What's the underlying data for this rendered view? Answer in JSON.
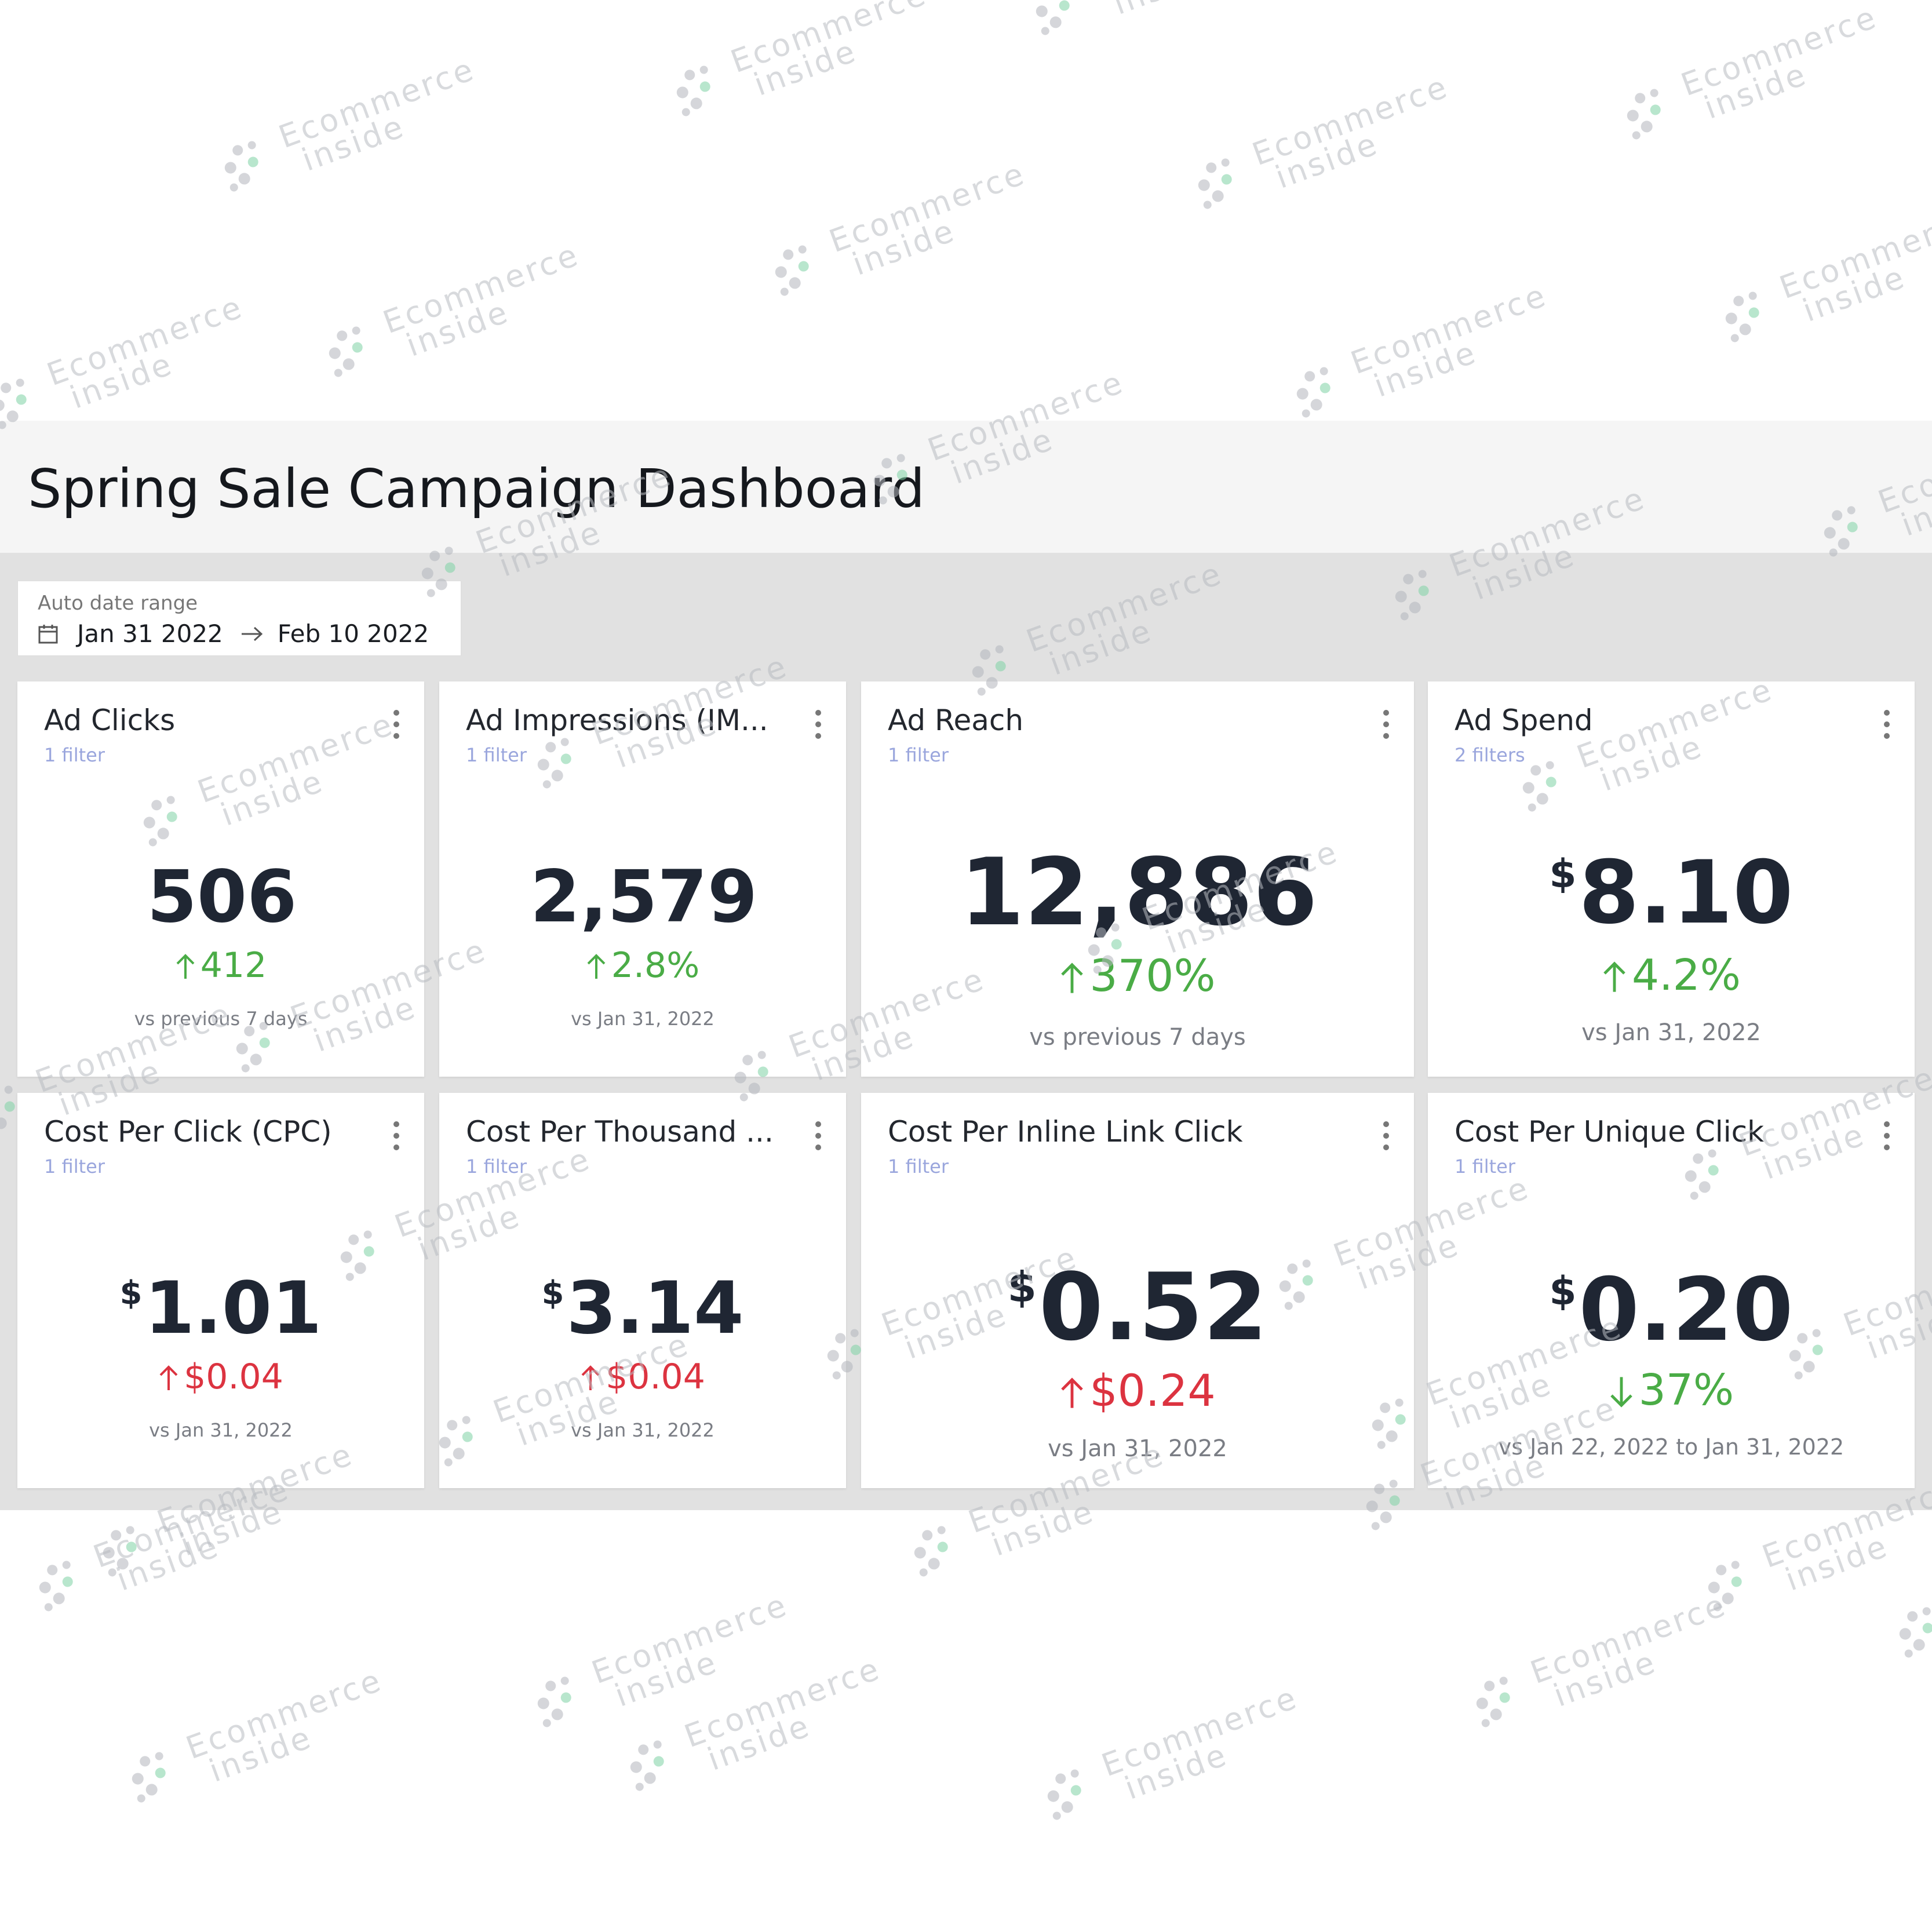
{
  "dashboard": {
    "title": "Spring Sale Campaign Dashboard"
  },
  "date_range": {
    "label": "Auto date range",
    "start": "Jan 31 2022",
    "end": "Feb 10 2022",
    "icon": "calendar-icon"
  },
  "watermark": {
    "line1": "Ecommerce",
    "line2": "inside"
  },
  "colors": {
    "positive": "#4aac46",
    "negative": "#dc3340",
    "filter_link": "#9aa6dd",
    "value": "#1f2633"
  },
  "cards": [
    {
      "title": "Ad Clicks",
      "filter": "1 filter",
      "currency": "",
      "value": "506",
      "change": "412",
      "direction": "up",
      "tone": "positive",
      "compare": "vs previous 7 days"
    },
    {
      "title": "Ad Impressions (IM...",
      "filter": "1 filter",
      "currency": "",
      "value": "2,579",
      "change": "2.8%",
      "direction": "up",
      "tone": "positive",
      "compare": "vs Jan 31, 2022"
    },
    {
      "title": "Ad Reach",
      "filter": "1 filter",
      "currency": "",
      "value": "12,886",
      "change": "370%",
      "direction": "up",
      "tone": "positive",
      "compare": "vs previous 7 days"
    },
    {
      "title": "Ad Spend",
      "filter": "2 filters",
      "currency": "$",
      "value": "8.10",
      "change": "4.2%",
      "direction": "up",
      "tone": "positive",
      "compare": "vs Jan 31, 2022"
    },
    {
      "title": "Cost Per Click (CPC)",
      "filter": "1 filter",
      "currency": "$",
      "value": "1.01",
      "change": "$0.04",
      "direction": "up",
      "tone": "negative",
      "compare": "vs Jan 31, 2022"
    },
    {
      "title": "Cost Per Thousand ...",
      "filter": "1 filter",
      "currency": "$",
      "value": "3.14",
      "change": "$0.04",
      "direction": "up",
      "tone": "negative",
      "compare": "vs Jan 31, 2022"
    },
    {
      "title": "Cost Per Inline Link Click",
      "filter": "1 filter",
      "currency": "$",
      "value": "0.52",
      "change": "$0.24",
      "direction": "up",
      "tone": "negative",
      "compare": "vs Jan 31, 2022"
    },
    {
      "title": "Cost Per Unique Click",
      "filter": "1 filter",
      "currency": "$",
      "value": "0.20",
      "change": "37%",
      "direction": "down",
      "tone": "positive",
      "compare": "vs Jan 22, 2022 to Jan 31, 2022"
    }
  ]
}
